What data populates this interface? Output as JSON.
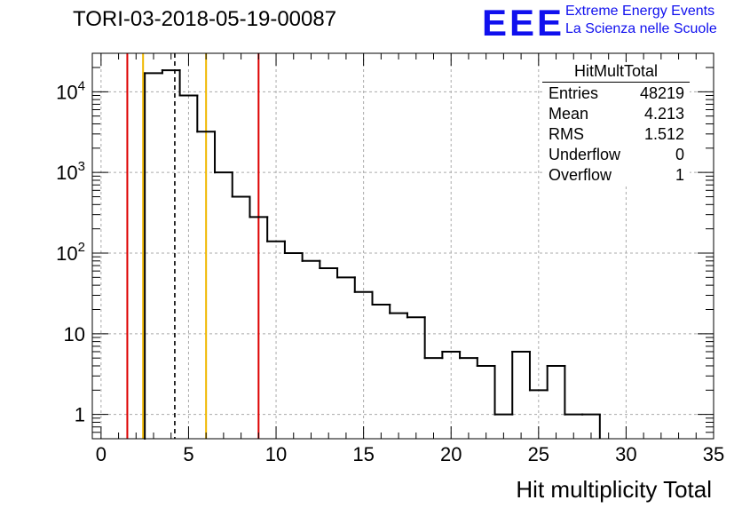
{
  "header": {
    "run_title": "TORI-03-2018-05-19-00087",
    "logo_text": "EEE",
    "logo_line1": "Extreme Energy Events",
    "logo_line2": "La Scienza nelle Scuole"
  },
  "stats_box": {
    "title": "HitMultTotal",
    "rows": [
      {
        "label": "Entries",
        "value": "48219"
      },
      {
        "label": "Mean",
        "value": "4.213"
      },
      {
        "label": "RMS",
        "value": "1.512"
      },
      {
        "label": "Underflow",
        "value": "0"
      },
      {
        "label": "Overflow",
        "value": "1"
      }
    ]
  },
  "chart_data": {
    "type": "histogram",
    "title": "TORI-03-2018-05-19-00087",
    "xlabel": "Hit multiplicity Total",
    "ylabel": "",
    "x_scale": "linear",
    "y_scale": "log",
    "xlim": [
      -0.5,
      35
    ],
    "ylim": [
      0.5,
      30000
    ],
    "grid": true,
    "x_ticks": [
      0,
      5,
      10,
      15,
      20,
      25,
      30,
      35
    ],
    "x_tick_labels": [
      "0",
      "5",
      "10",
      "15",
      "20",
      "25",
      "30",
      "35"
    ],
    "y_ticks": [
      1,
      10,
      100,
      1000,
      10000
    ],
    "y_tick_labels": [
      {
        "base": "1",
        "exp": ""
      },
      {
        "base": "10",
        "exp": ""
      },
      {
        "base": "10",
        "exp": "2"
      },
      {
        "base": "10",
        "exp": "3"
      },
      {
        "base": "10",
        "exp": "4"
      }
    ],
    "bin_edges": [
      2.5,
      3.5,
      4.5,
      5.5,
      6.5,
      7.5,
      8.5,
      9.5,
      10.5,
      11.5,
      12.5,
      13.5,
      14.5,
      15.5,
      16.5,
      17.5,
      18.5,
      19.5,
      20.5,
      21.5,
      22.5,
      23.5,
      24.5,
      25.5,
      26.5,
      27.5,
      28.5
    ],
    "counts": [
      17000,
      18500,
      9000,
      3200,
      1000,
      500,
      280,
      140,
      100,
      80,
      65,
      50,
      33,
      23,
      18,
      16,
      5,
      6,
      5,
      4,
      1,
      6,
      2,
      4,
      1,
      1
    ],
    "vertical_lines": [
      {
        "x": 1.5,
        "color": "#dd0000",
        "style": "solid"
      },
      {
        "x": 2.4,
        "color": "#f0b800",
        "style": "solid"
      },
      {
        "x": 4.213,
        "color": "#000000",
        "style": "dashed"
      },
      {
        "x": 6.0,
        "color": "#f0b800",
        "style": "solid"
      },
      {
        "x": 9.0,
        "color": "#dd0000",
        "style": "solid"
      }
    ],
    "legend_position": "top-right"
  }
}
